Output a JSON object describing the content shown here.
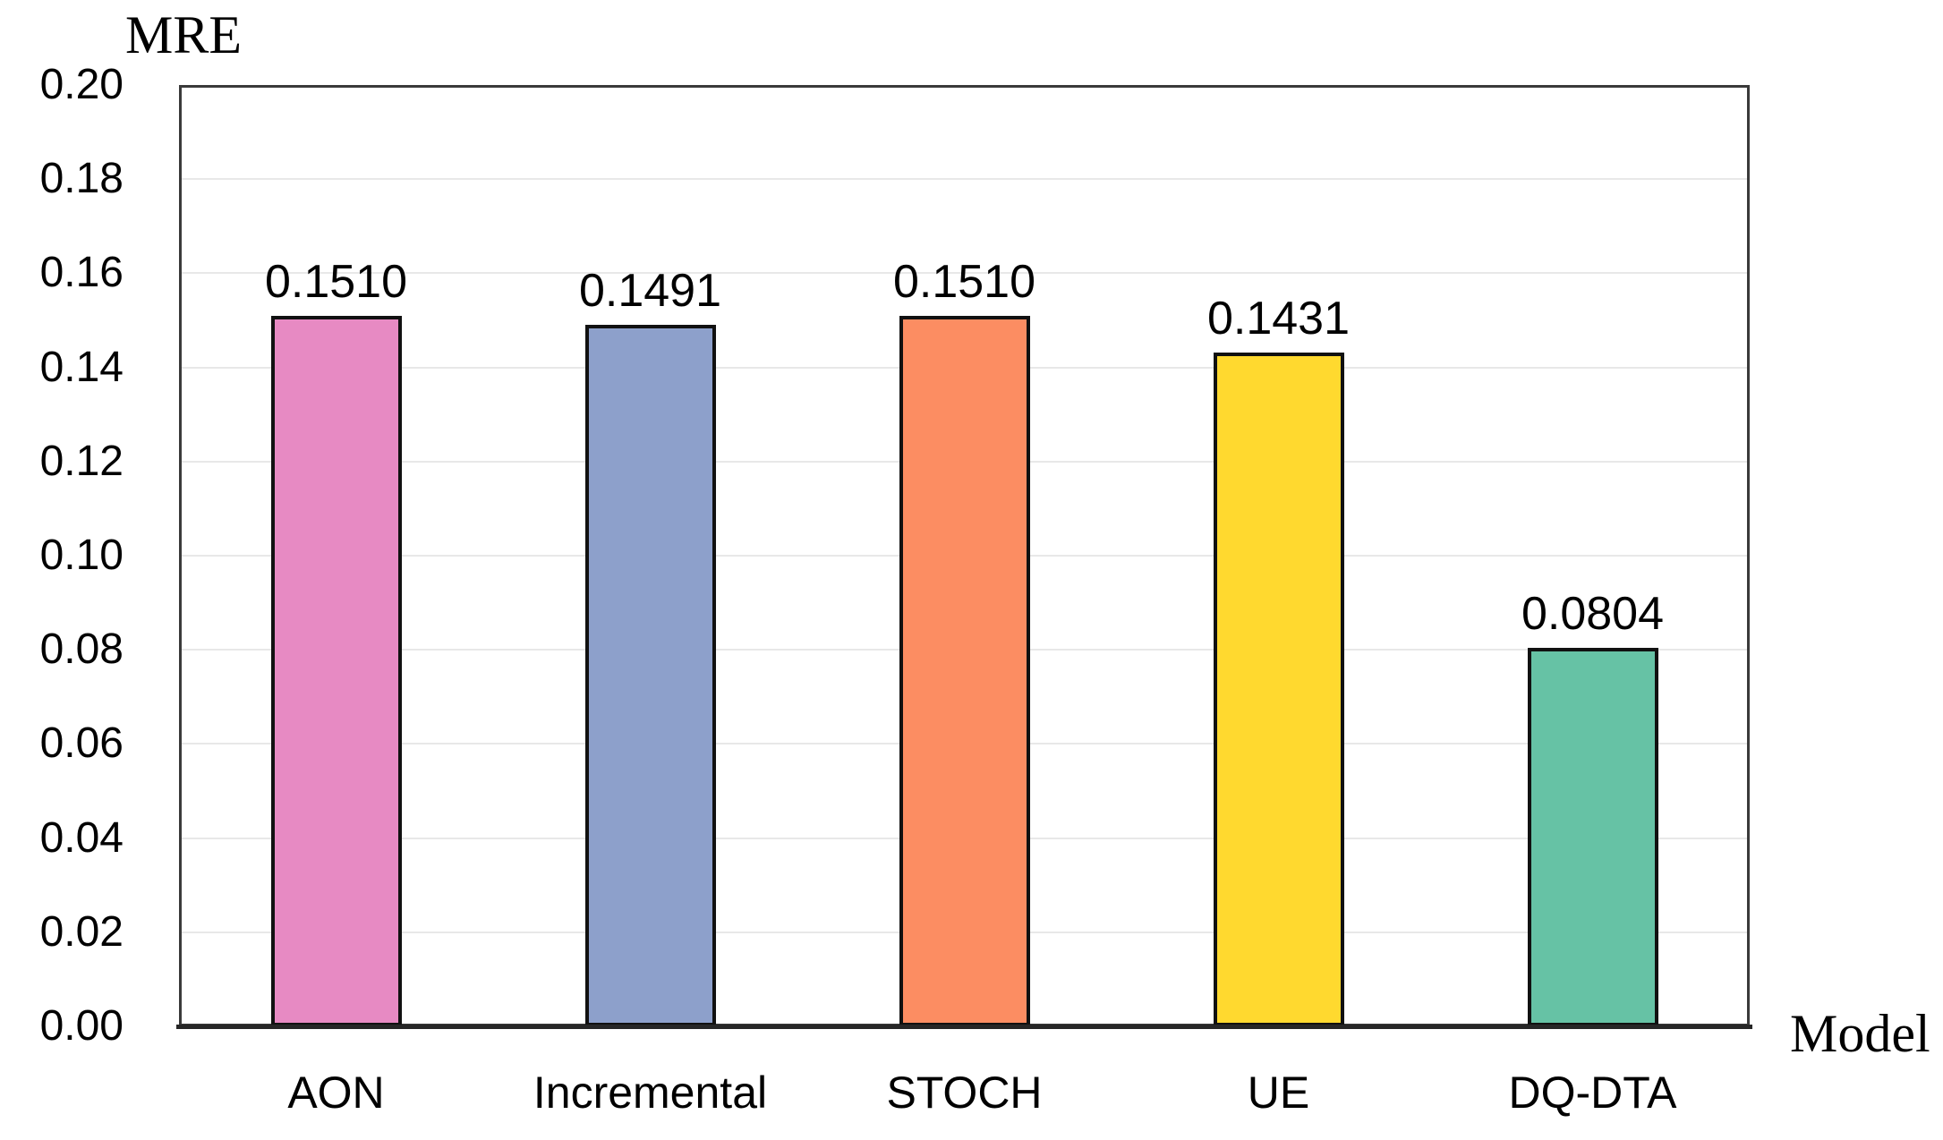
{
  "page": {
    "background": "#ffffff"
  },
  "chart_data": {
    "type": "bar",
    "title": "MRE",
    "xlabel": "Model",
    "ylabel": "MRE",
    "categories": [
      "AON",
      "Incremental",
      "STOCH",
      "UE",
      "DQ-DTA"
    ],
    "values": [
      0.151,
      0.1491,
      0.151,
      0.1431,
      0.0804
    ],
    "value_labels": [
      "0.1510",
      "0.1491",
      "0.1510",
      "0.1431",
      "0.0804"
    ],
    "bar_colors": [
      "#e78ac3",
      "#8da0cb",
      "#fc8d62",
      "#ffd92f",
      "#66c2a5"
    ],
    "bar_border_color": "#111111",
    "ylim": [
      0,
      0.2
    ],
    "ytick_step": 0.02,
    "ytick_labels": [
      "0.00",
      "0.02",
      "0.04",
      "0.06",
      "0.08",
      "0.10",
      "0.12",
      "0.14",
      "0.16",
      "0.18",
      "0.20"
    ],
    "grid": true,
    "gridline_color": "#e8e8e8",
    "plot_border_color": "#3a3a3a",
    "axis_line_color": "#262626",
    "text_color": "#000000",
    "legend": "none"
  }
}
